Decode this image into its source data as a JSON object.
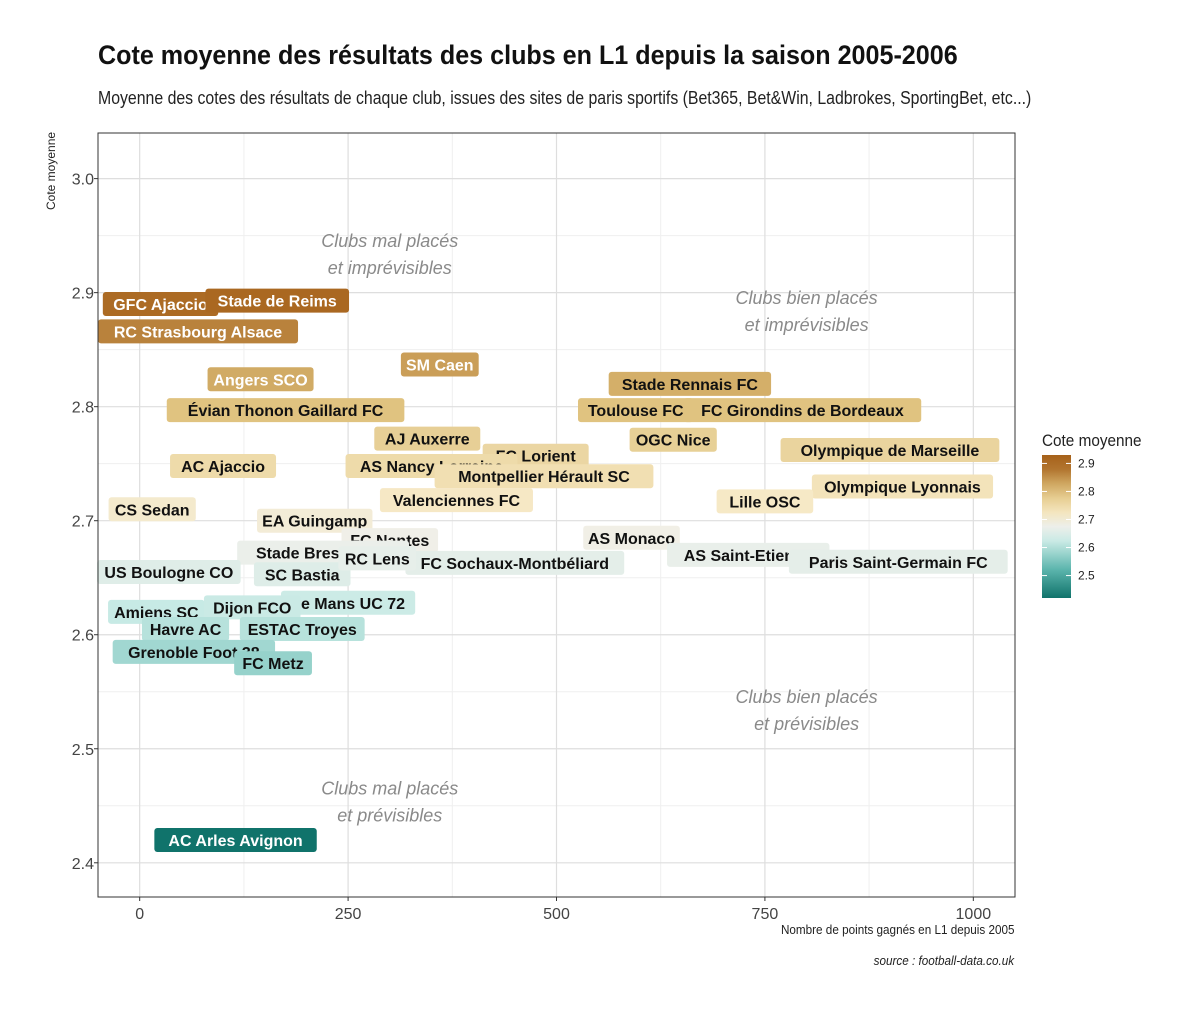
{
  "title": "Cote moyenne des résultats des clubs en L1 depuis la saison 2005-2006",
  "subtitle": "Moyenne des cotes des résultats de chaque club, issues des sites de paris sportifs (Bet365, Bet&Win, Ladbrokes, SportingBet, etc...)",
  "caption": "source : football-data.co.uk",
  "legend": {
    "title": "Cote moyenne",
    "ticks": [
      "2.9",
      "2.8",
      "2.7",
      "2.6",
      "2.5"
    ],
    "colors": [
      "#005f55",
      "#5ab4ac",
      "#c7eae5",
      "#f5f5f5",
      "#f6e8c3",
      "#dfc27d",
      "#a6611a"
    ]
  },
  "quadrants": [
    {
      "line1": "Clubs mal placés",
      "line2": "et imprévisibles",
      "x": 300,
      "y": 2.94
    },
    {
      "line1": "Clubs bien placés",
      "line2": "et imprévisibles",
      "x": 800,
      "y": 2.89
    },
    {
      "line1": "Clubs bien placés",
      "line2": "et prévisibles",
      "x": 800,
      "y": 2.54
    },
    {
      "line1": "Clubs mal placés",
      "line2": "et prévisibles",
      "x": 300,
      "y": 2.46
    }
  ],
  "chart_data": {
    "type": "scatter",
    "title": "Cote moyenne des résultats des clubs en L1 depuis la saison 2005-2006",
    "xlabel": "Nombre de points gagnés en L1 depuis 2005",
    "ylabel": "Cote moyenne",
    "xlim": [
      -50,
      1050
    ],
    "ylim": [
      2.37,
      3.04
    ],
    "xticks": [
      0,
      250,
      500,
      750,
      1000
    ],
    "yticks": [
      2.4,
      2.5,
      2.6,
      2.7,
      2.8,
      2.9,
      3.0
    ],
    "grid": true,
    "color_scale": "brown-to-teal (BrBG), by Cote moyenne",
    "points": [
      {
        "name": "GFC Ajaccio",
        "x": 25,
        "y": 2.89
      },
      {
        "name": "Stade de Reims",
        "x": 165,
        "y": 2.893
      },
      {
        "name": "RC Strasbourg Alsace",
        "x": 70,
        "y": 2.866
      },
      {
        "name": "SM Caen",
        "x": 360,
        "y": 2.837
      },
      {
        "name": "Angers SCO",
        "x": 145,
        "y": 2.824
      },
      {
        "name": "Stade Rennais FC",
        "x": 660,
        "y": 2.82
      },
      {
        "name": "Évian Thonon Gaillard FC",
        "x": 175,
        "y": 2.797
      },
      {
        "name": "Toulouse FC",
        "x": 595,
        "y": 2.797
      },
      {
        "name": "FC Girondins de Bordeaux",
        "x": 795,
        "y": 2.797
      },
      {
        "name": "AJ Auxerre",
        "x": 345,
        "y": 2.772
      },
      {
        "name": "OGC Nice",
        "x": 640,
        "y": 2.771
      },
      {
        "name": "FC Lorient",
        "x": 475,
        "y": 2.757
      },
      {
        "name": "Olympique de Marseille",
        "x": 900,
        "y": 2.762
      },
      {
        "name": "AC Ajaccio",
        "x": 100,
        "y": 2.748
      },
      {
        "name": "AS Nancy Lorraine",
        "x": 350,
        "y": 2.748
      },
      {
        "name": "Montpellier Hérault SC",
        "x": 485,
        "y": 2.739
      },
      {
        "name": "Olympique Lyonnais",
        "x": 915,
        "y": 2.73
      },
      {
        "name": "Valenciennes FC",
        "x": 380,
        "y": 2.718
      },
      {
        "name": "Lille OSC",
        "x": 750,
        "y": 2.717
      },
      {
        "name": "CS Sedan",
        "x": 15,
        "y": 2.71
      },
      {
        "name": "EA Guingamp",
        "x": 210,
        "y": 2.7
      },
      {
        "name": "AS Monaco",
        "x": 590,
        "y": 2.685
      },
      {
        "name": "FC Nantes",
        "x": 300,
        "y": 2.683
      },
      {
        "name": "Stade Brestois 29",
        "x": 220,
        "y": 2.672
      },
      {
        "name": "AS Saint-Etienne",
        "x": 730,
        "y": 2.67
      },
      {
        "name": "FC Sochaux-Montbéliard",
        "x": 450,
        "y": 2.663
      },
      {
        "name": "Paris Saint-Germain FC",
        "x": 910,
        "y": 2.664
      },
      {
        "name": "US Boulogne CO",
        "x": 35,
        "y": 2.655
      },
      {
        "name": "SC Bastia",
        "x": 195,
        "y": 2.653
      },
      {
        "name": "RC Lens",
        "x": 285,
        "y": 2.667
      },
      {
        "name": "Le Mans UC 72",
        "x": 250,
        "y": 2.628
      },
      {
        "name": "Amiens SC",
        "x": 20,
        "y": 2.62
      },
      {
        "name": "Dijon FCO",
        "x": 135,
        "y": 2.624
      },
      {
        "name": "ESTAC Troyes",
        "x": 195,
        "y": 2.605
      },
      {
        "name": "Havre AC",
        "x": 55,
        "y": 2.605
      },
      {
        "name": "Grenoble Foot 38",
        "x": 65,
        "y": 2.585
      },
      {
        "name": "FC Metz",
        "x": 160,
        "y": 2.575
      },
      {
        "name": "AC Arles Avignon",
        "x": 115,
        "y": 2.42
      }
    ]
  }
}
